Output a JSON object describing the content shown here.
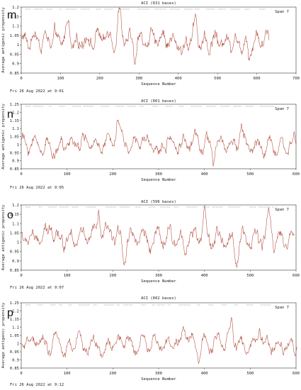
{
  "chart_data": [
    {
      "type": "line",
      "panel_letter": "m",
      "title": "ACI  (631 bases)",
      "span_label": "Span 7",
      "xlabel": "Sequence Number",
      "ylabel": "Average antigenic propensity",
      "xlim": [
        0,
        700
      ],
      "ylim": [
        0.85,
        1.2
      ],
      "xticks": [
        "0",
        "100",
        "200",
        "300",
        "400",
        "500",
        "600",
        "700"
      ],
      "yticks": [
        "0.85",
        "0.9",
        "0.95",
        "1",
        "1.05",
        "1.1",
        "1.15",
        "1.2"
      ],
      "n_points": 631,
      "series_shape": {
        "mean": 1.025,
        "amplitude": 0.085,
        "peak_positions": [
          120,
          250,
          445
        ],
        "low_positions": [
          290,
          410,
          580
        ]
      },
      "date": "Fri 26 Aug 2022 at 9:01",
      "line_color": "#b04a3a"
    },
    {
      "type": "line",
      "panel_letter": "n",
      "title": "ACI  (601 bases)",
      "span_label": "Span 7",
      "xlabel": "Sequence Number",
      "ylabel": "Average antigenic propensity",
      "xlim": [
        0,
        600
      ],
      "ylim": [
        0.85,
        1.25
      ],
      "xticks": [
        "0",
        "100",
        "200",
        "300",
        "400",
        "500",
        "600"
      ],
      "yticks": [
        "0.85",
        "0.9",
        "0.95",
        "1",
        "1.05",
        "1.1",
        "1.15",
        "1.2",
        "1.25"
      ],
      "n_points": 601,
      "series_shape": {
        "mean": 1.0,
        "amplitude": 0.09,
        "peak_positions": [
          210,
          480
        ],
        "low_positions": [
          80,
          300,
          420
        ]
      },
      "date": "Fri 26 Aug 2022 at 9:05",
      "line_color": "#b04a3a"
    },
    {
      "type": "line",
      "panel_letter": "o",
      "title": "ACI  (596 bases)",
      "span_label": "Span 7",
      "xlabel": "Sequence Number",
      "ylabel": "Average antigenic propensity",
      "xlim": [
        0,
        600
      ],
      "ylim": [
        0.85,
        1.2
      ],
      "xticks": [
        "0",
        "100",
        "200",
        "300",
        "400",
        "500",
        "600"
      ],
      "yticks": [
        "0.85",
        "0.9",
        "0.95",
        "1",
        "1.05",
        "1.1",
        "1.15",
        "1.2"
      ],
      "n_points": 596,
      "series_shape": {
        "mean": 1.02,
        "amplitude": 0.09,
        "peak_positions": [
          65,
          170,
          400,
          540
        ],
        "low_positions": [
          225,
          470
        ]
      },
      "date": "Fri 26 Aug 2022 at 9:07",
      "line_color": "#b04a3a"
    },
    {
      "type": "line",
      "panel_letter": "p",
      "title": "ACI  (602 bases)",
      "span_label": "Span 7",
      "xlabel": "Sequence Number",
      "ylabel": "Average antigenic propensity",
      "xlim": [
        0,
        600
      ],
      "ylim": [
        0.85,
        1.25
      ],
      "xticks": [
        "0",
        "100",
        "200",
        "300",
        "400",
        "500",
        "600"
      ],
      "yticks": [
        "0.85",
        "0.9",
        "0.95",
        "1",
        "1.05",
        "1.1",
        "1.15",
        "1.2",
        "1.25"
      ],
      "n_points": 602,
      "series_shape": {
        "mean": 1.0,
        "amplitude": 0.085,
        "peak_positions": [
          460,
          355,
          520
        ],
        "low_positions": [
          95,
          180,
          390
        ]
      },
      "date": "Fri 26 Aug 2022 at 9:12",
      "line_color": "#b04a3a"
    }
  ]
}
